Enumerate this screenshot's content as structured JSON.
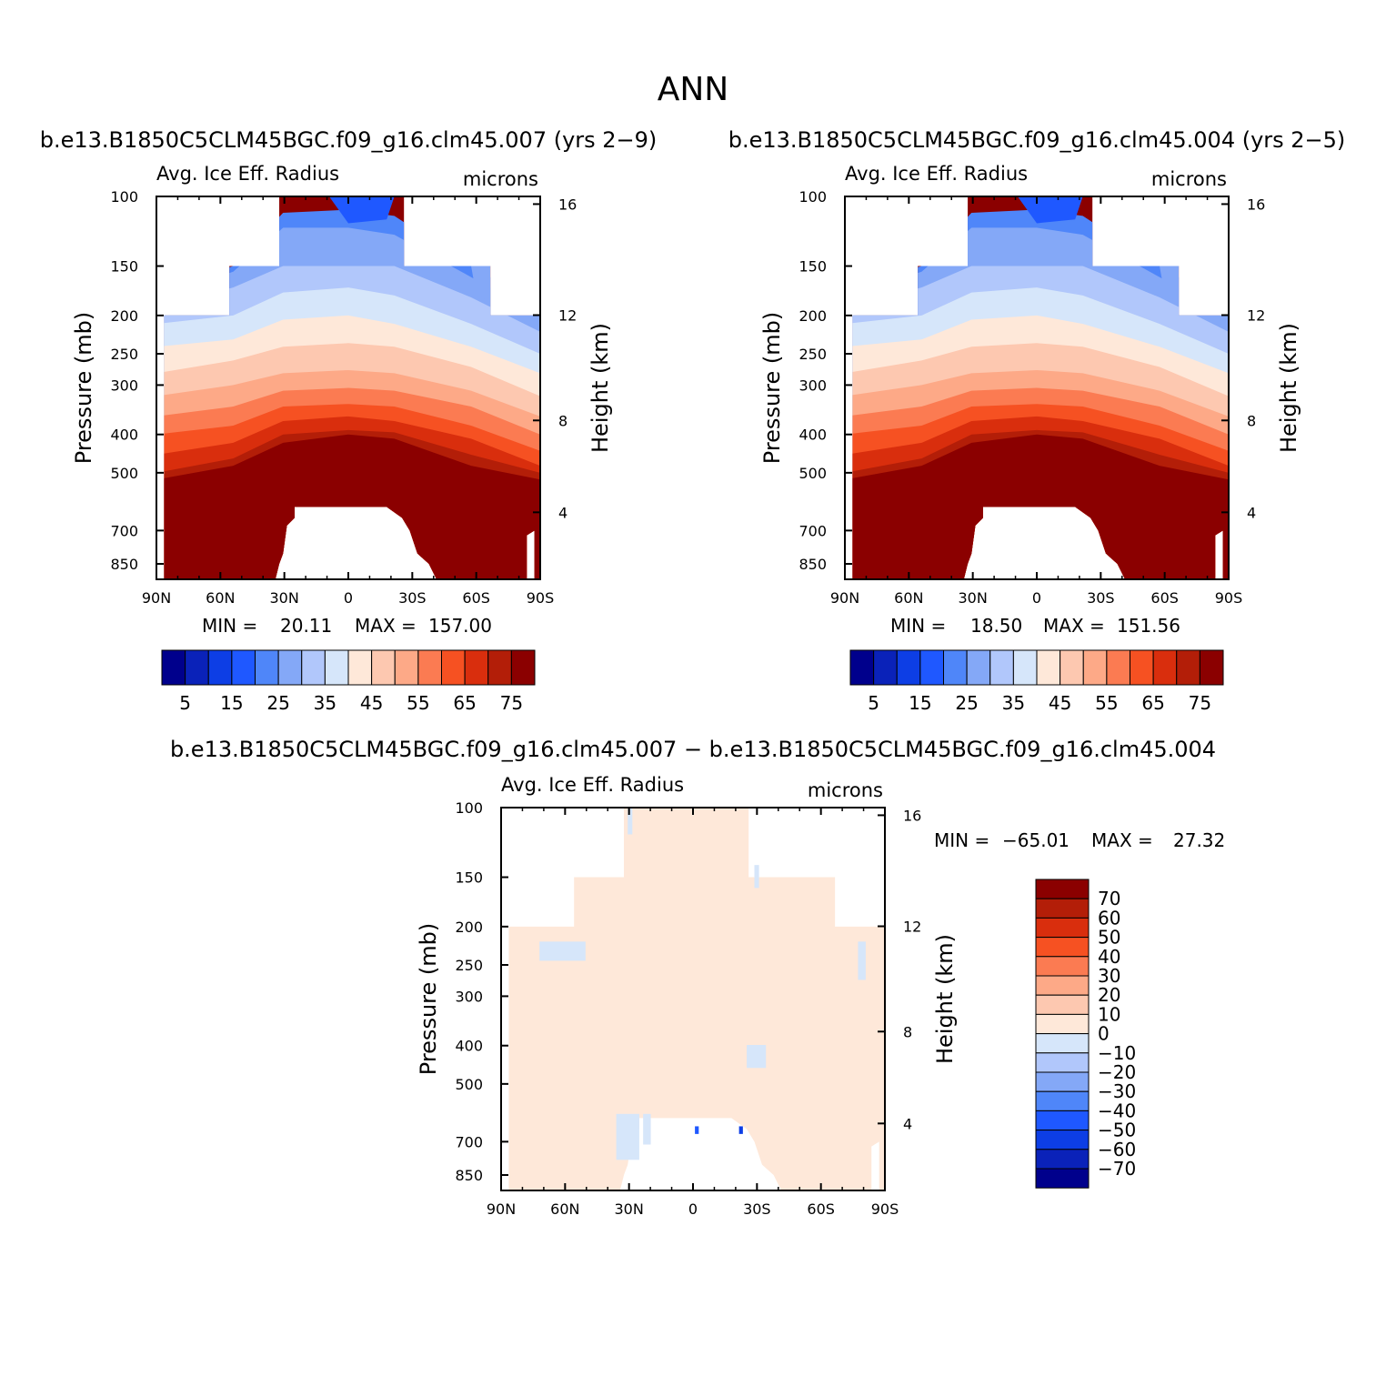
{
  "figure_title": "ANN",
  "colors": {
    "levels15": [
      "#00008c",
      "#0a22b9",
      "#0d3ee5",
      "#1f58ff",
      "#4f86f9",
      "#84a8f7",
      "#b1c7fb",
      "#d6e6fa",
      "#fee8d9",
      "#fdc8b0",
      "#fda987",
      "#fb7b52",
      "#f65122",
      "#d92e0d",
      "#b31e08",
      "#8b0000"
    ],
    "diff": [
      "#00008c",
      "#0a22b9",
      "#0d3ee5",
      "#1f58ff",
      "#4f86f9",
      "#84a8f7",
      "#b1c7fb",
      "#d6e6fa",
      "#fee8d9",
      "#fda987",
      "#fb7b52",
      "#f65122",
      "#d92e0d",
      "#b31e08",
      "#8b0000"
    ],
    "diff_fill": "#fee8d9",
    "diff_blue": "#d6e6fa"
  },
  "chart_data": [
    {
      "type": "heatmap",
      "case": "b.e13.B1850C5CLM45BGC.f09_g16.clm45.007 (yrs 2−9)",
      "variable": "Avg. Ice Eff. Radius",
      "units": "microns",
      "ylabel": "Pressure (mb)",
      "y2label": "Height (km)",
      "x_ticks": [
        "90N",
        "60N",
        "30N",
        "0",
        "30S",
        "60S",
        "90S"
      ],
      "y_ticks": [
        "100",
        "150",
        "200",
        "250",
        "300",
        "400",
        "500",
        "700",
        "850"
      ],
      "y2_ticks": [
        "16",
        "12",
        "8",
        "4"
      ],
      "min_label": "MIN =",
      "min_value": "20.11",
      "max_label": "MAX =",
      "max_value": "157.00",
      "colorbar_labels": [
        "5",
        "15",
        "25",
        "35",
        "45",
        "55",
        "65",
        "75"
      ],
      "levels": [
        5,
        10,
        15,
        20,
        25,
        30,
        35,
        40,
        45,
        50,
        55,
        60,
        65,
        70,
        75
      ]
    },
    {
      "type": "heatmap",
      "case": "b.e13.B1850C5CLM45BGC.f09_g16.clm45.004 (yrs 2−5)",
      "variable": "Avg. Ice Eff. Radius",
      "units": "microns",
      "ylabel": "Pressure (mb)",
      "y2label": "Height (km)",
      "x_ticks": [
        "90N",
        "60N",
        "30N",
        "0",
        "30S",
        "60S",
        "90S"
      ],
      "y_ticks": [
        "100",
        "150",
        "200",
        "250",
        "300",
        "400",
        "500",
        "700",
        "850"
      ],
      "y2_ticks": [
        "16",
        "12",
        "8",
        "4"
      ],
      "min_label": "MIN =",
      "min_value": "18.50",
      "max_label": "MAX =",
      "max_value": "151.56",
      "colorbar_labels": [
        "5",
        "15",
        "25",
        "35",
        "45",
        "55",
        "65",
        "75"
      ],
      "levels": [
        5,
        10,
        15,
        20,
        25,
        30,
        35,
        40,
        45,
        50,
        55,
        60,
        65,
        70,
        75
      ]
    },
    {
      "type": "heatmap",
      "case": "b.e13.B1850C5CLM45BGC.f09_g16.clm45.007 − b.e13.B1850C5CLM45BGC.f09_g16.clm45.004",
      "variable": "Avg. Ice Eff. Radius",
      "units": "microns",
      "ylabel": "Pressure (mb)",
      "y2label": "Height (km)",
      "x_ticks": [
        "90N",
        "60N",
        "30N",
        "0",
        "30S",
        "60S",
        "90S"
      ],
      "y_ticks": [
        "100",
        "150",
        "200",
        "250",
        "300",
        "400",
        "500",
        "700",
        "850"
      ],
      "y2_ticks": [
        "16",
        "12",
        "8",
        "4"
      ],
      "min_label": "MIN =",
      "min_value": "−65.01",
      "max_label": "MAX =",
      "max_value": "27.32",
      "colorbar_labels": [
        "70",
        "60",
        "50",
        "40",
        "30",
        "20",
        "10",
        "0",
        "−10",
        "−20",
        "−30",
        "−40",
        "−50",
        "−60",
        "−70"
      ],
      "levels": [
        -70,
        -60,
        -50,
        -40,
        -30,
        -20,
        -10,
        0,
        10,
        20,
        30,
        40,
        50,
        60,
        70
      ]
    }
  ]
}
